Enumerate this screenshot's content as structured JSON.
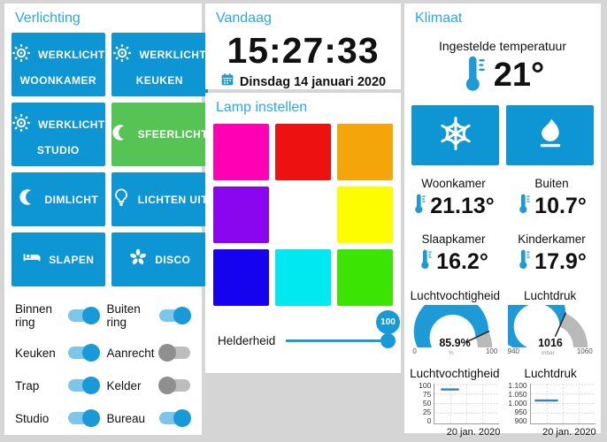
{
  "theme": {
    "primary": "#0d95d4",
    "header": "#2aa9e1",
    "toggle_on_knob": "#1899d8",
    "toggle_on_track": "#7ec5ea",
    "gauge_fill": "#1e9ad6",
    "gauge_rest": "#b9b9b9",
    "chart_line": "#3182bd"
  },
  "verlichting": {
    "title": "Verlichting",
    "buttons": [
      {
        "label": "WERKLICHT",
        "label2": "WOONKAMER",
        "icon": "sun-icon",
        "color": "#0d95d4"
      },
      {
        "label": "WERKLICHT",
        "label2": "KEUKEN",
        "icon": "sun-icon",
        "color": "#0d95d4"
      },
      {
        "label": "WERKLICHT",
        "label2": "STUDIO",
        "icon": "sun-icon",
        "color": "#0d95d4"
      },
      {
        "label": "SFEERLICHT",
        "label2": "",
        "icon": "moon-icon",
        "color": "#55c455"
      },
      {
        "label": "DIMLICHT",
        "label2": "",
        "icon": "moon-icon",
        "color": "#0d95d4"
      },
      {
        "label": "LICHTEN UIT",
        "label2": "",
        "icon": "bulb-icon",
        "color": "#0d95d4"
      },
      {
        "label": "SLAPEN",
        "label2": "",
        "icon": "bed-icon",
        "color": "#0d95d4"
      },
      {
        "label": "DISCO",
        "label2": "",
        "icon": "disco-icon",
        "color": "#0d95d4"
      }
    ],
    "switches": [
      {
        "label": "Binnen ring",
        "on": true
      },
      {
        "label": "Buiten ring",
        "on": true
      },
      {
        "label": "Keuken",
        "on": true
      },
      {
        "label": "Aanrecht",
        "on": false
      },
      {
        "label": "Trap",
        "on": true
      },
      {
        "label": "Kelder",
        "on": false
      },
      {
        "label": "Studio",
        "on": true
      },
      {
        "label": "Bureau",
        "on": true
      }
    ]
  },
  "vandaag": {
    "title": "Vandaag",
    "time": "15:27:33",
    "date": "Dinsdag 14 januari 2020"
  },
  "lamp": {
    "title": "Lamp instellen",
    "colors": [
      "#ff00b4",
      "#ee1111",
      "#f3a50a",
      "#8a06ee",
      "#ffffff",
      "#fdfd00",
      "#1502ef",
      "#00e8f0",
      "#3be402"
    ],
    "brightness": {
      "label": "Helderheid",
      "value": "100",
      "fraction": 1
    }
  },
  "klimaat": {
    "title": "Klimaat",
    "setpoint": {
      "label": "Ingestelde temperatuur",
      "value": "21°"
    },
    "modes": [
      {
        "name": "koelen",
        "icon": "snowflake-icon"
      },
      {
        "name": "verwarmen",
        "icon": "flame-icon"
      }
    ],
    "sensors": [
      {
        "label": "Woonkamer",
        "value": "21.13°"
      },
      {
        "label": "Buiten",
        "value": "10.7°"
      },
      {
        "label": "Slaapkamer",
        "value": "16.2°"
      },
      {
        "label": "Kinderkamer",
        "value": "17.9°"
      }
    ],
    "gauges": [
      {
        "title": "Luchtvochtigheid",
        "value": "85.9%",
        "min": "0",
        "max": "100",
        "unit": "%",
        "fraction": 0.859
      },
      {
        "title": "Luchtdruk",
        "value": "1016",
        "min": "940",
        "max": "1060",
        "unit": "mbar",
        "fraction": 0.633
      }
    ],
    "charts": [
      {
        "title": "Luchtvochtigheid",
        "type": "line",
        "yticks": [
          "100",
          "75",
          "50",
          "25",
          "0"
        ],
        "ylim": [
          0,
          100
        ],
        "segment": {
          "x0": 0.1,
          "x1": 0.38,
          "y": 87
        },
        "xlabel": "20 jan. 2020"
      },
      {
        "title": "Luchtdruk",
        "type": "line",
        "yticks": [
          "1.100",
          "1.050",
          "1.000",
          "950",
          "900"
        ],
        "ylim": [
          900,
          1100
        ],
        "segment": {
          "x0": 0.06,
          "x1": 0.42,
          "y": 1016
        },
        "xlabel": "20 jan. 2020"
      }
    ]
  }
}
